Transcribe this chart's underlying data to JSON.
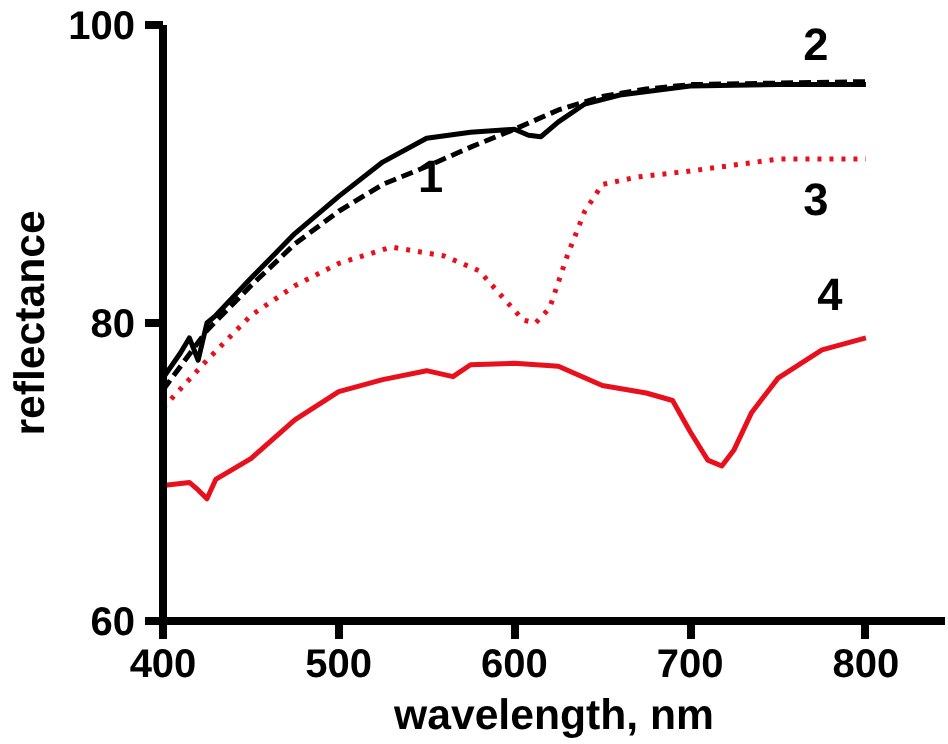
{
  "chart_data": {
    "type": "line",
    "xlabel": "wavelength, nm",
    "ylabel": "reflectance",
    "xlim": [
      400,
      845
    ],
    "ylim": [
      60,
      100
    ],
    "xticks": [
      400,
      500,
      600,
      700,
      800
    ],
    "yticks": [
      60,
      80,
      100
    ],
    "grid": false,
    "marker": "none",
    "series": [
      {
        "name": "1",
        "color": "#000000",
        "line_style": "solid",
        "x": [
          400,
          410,
          415,
          420,
          425,
          430,
          450,
          475,
          500,
          525,
          550,
          575,
          600,
          608,
          615,
          625,
          640,
          660,
          700,
          750,
          800
        ],
        "values": [
          76.3,
          78,
          79,
          77.5,
          80,
          80.5,
          83,
          86,
          88.5,
          90.8,
          92.4,
          92.8,
          93,
          92.6,
          92.5,
          93.5,
          94.7,
          95.3,
          95.9,
          96,
          96
        ]
      },
      {
        "name": "2",
        "color": "#000000",
        "line_style": "dashed",
        "x": [
          400,
          425,
          450,
          475,
          500,
          525,
          550,
          575,
          600,
          625,
          650,
          675,
          700,
          750,
          800
        ],
        "values": [
          75.5,
          79.5,
          82.5,
          85.3,
          87.5,
          89.3,
          90.5,
          91.8,
          93,
          94.3,
          95.2,
          95.7,
          96,
          96.1,
          96.2
        ]
      },
      {
        "name": "3",
        "color": "#e8101c",
        "line_style": "dotted",
        "x": [
          400,
          425,
          450,
          475,
          500,
          530,
          560,
          580,
          595,
          605,
          612,
          620,
          630,
          640,
          650,
          670,
          700,
          750,
          800
        ],
        "values": [
          74.3,
          77.5,
          80.5,
          82.5,
          84,
          85.1,
          84.5,
          83.5,
          81.5,
          80.2,
          80,
          81,
          84.5,
          87.5,
          89.3,
          89.8,
          90.2,
          91,
          91
        ]
      },
      {
        "name": "4",
        "color": "#e8101c",
        "line_style": "solid",
        "x": [
          400,
          415,
          420,
          425,
          430,
          450,
          475,
          500,
          525,
          550,
          565,
          575,
          600,
          625,
          650,
          675,
          690,
          700,
          710,
          718,
          725,
          735,
          750,
          775,
          800
        ],
        "values": [
          69.1,
          69.3,
          68.8,
          68.2,
          69.5,
          70.9,
          73.5,
          75.4,
          76.2,
          76.8,
          76.4,
          77.2,
          77.3,
          77.1,
          75.8,
          75.3,
          74.8,
          72.7,
          70.8,
          70.4,
          71.5,
          74,
          76.3,
          78.2,
          79
        ]
      }
    ]
  }
}
